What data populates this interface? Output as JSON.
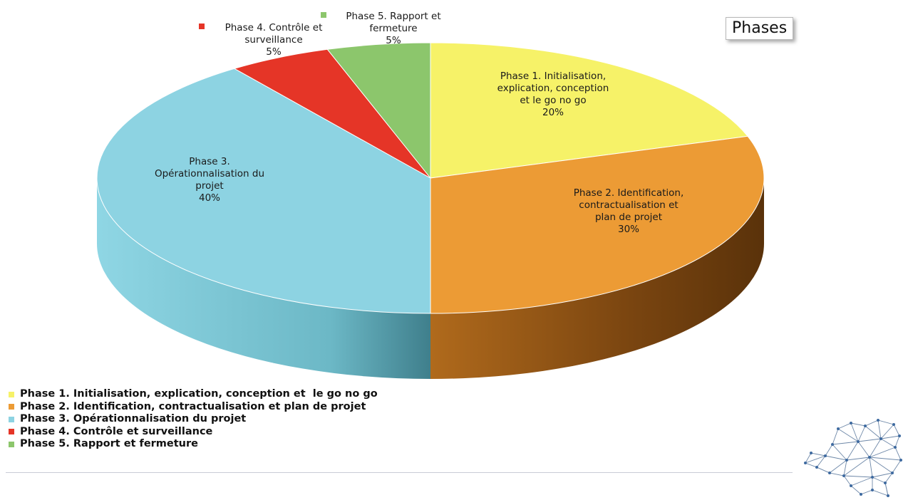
{
  "title": "Phases",
  "chart_data": {
    "type": "pie",
    "title": "Phases",
    "slices": [
      {
        "label_lines": [
          "Phase 1. Initialisation,",
          "explication, conception",
          "et  le go no go",
          "20%"
        ],
        "legend": "Phase 1. Initialisation, explication, conception et  le go no go",
        "value": 20,
        "color": "#f6f268"
      },
      {
        "label_lines": [
          "Phase 2. Identification,",
          "contractualisation et",
          "plan de projet",
          "30%"
        ],
        "legend": "Phase 2. Identification, contractualisation et plan de projet",
        "value": 30,
        "color": "#ec9b35"
      },
      {
        "label_lines": [
          "Phase 3.",
          "Opérationnalisation du",
          "projet",
          "40%"
        ],
        "legend": "Phase 3. Opérationnalisation du projet",
        "value": 40,
        "color": "#8dd3e2"
      },
      {
        "label_lines": [
          "Phase 4. Contrôle et",
          "surveillance",
          "5%"
        ],
        "legend": "Phase 4. Contrôle et surveillance",
        "value": 5,
        "color": "#e53527"
      },
      {
        "label_lines": [
          "Phase 5. Rapport et",
          "fermeture",
          "5%"
        ],
        "legend": "Phase 5. Rapport et fermeture",
        "value": 5,
        "color": "#8cc66c"
      }
    ],
    "legend_position": "bottom-left",
    "style": "3d-pie"
  },
  "logo": "map-network-logo"
}
